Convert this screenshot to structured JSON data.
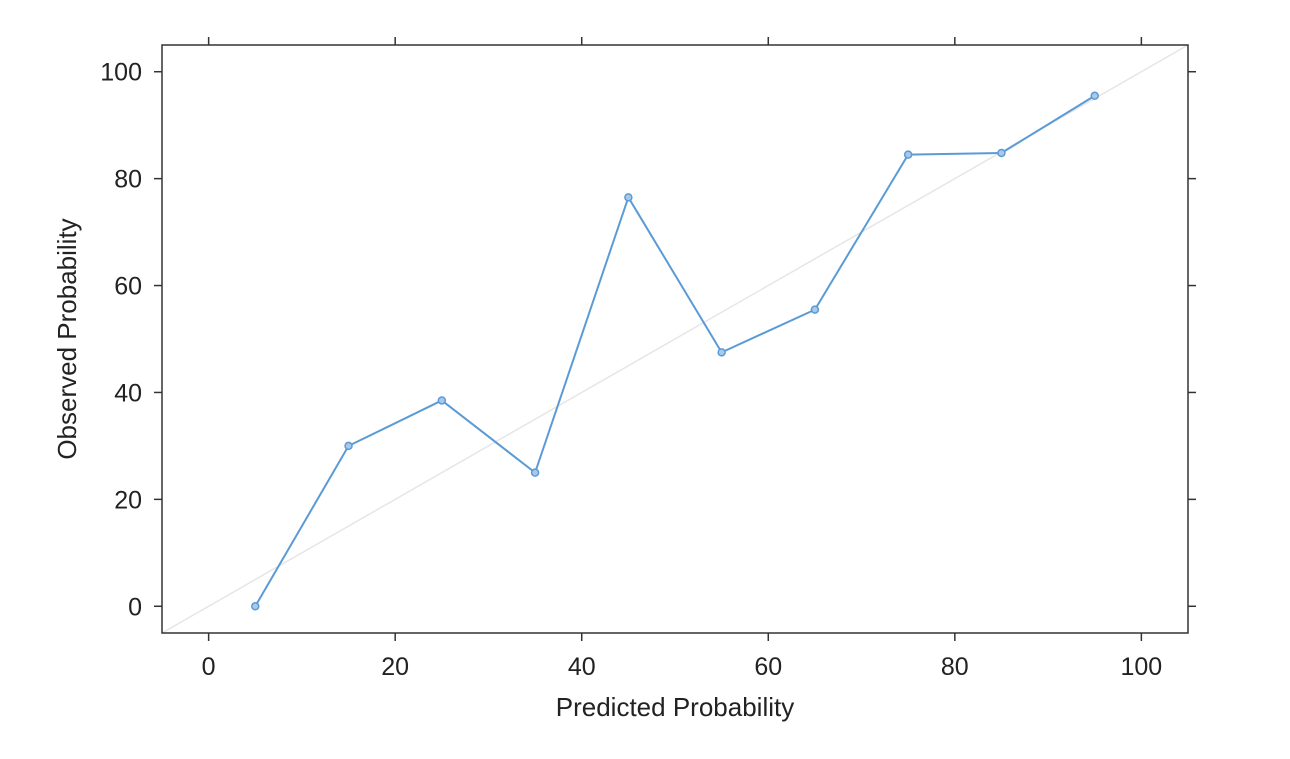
{
  "chart_data": {
    "type": "line",
    "xlabel": "Predicted Probability",
    "ylabel": "Observed Probability",
    "xlim": [
      -5,
      105
    ],
    "ylim": [
      -5,
      105
    ],
    "x_ticks": [
      0,
      20,
      40,
      60,
      80,
      100
    ],
    "y_ticks": [
      0,
      20,
      40,
      60,
      80,
      100
    ],
    "series": [
      {
        "x": [
          5,
          15,
          25,
          35,
          45,
          55,
          65,
          75,
          85,
          95
        ],
        "y": [
          0,
          30,
          38.5,
          25,
          76.5,
          47.5,
          55.5,
          84.5,
          84.8,
          95.5
        ],
        "color": "#5b9bd5"
      }
    ],
    "reference_line": {
      "x": [
        -5,
        105
      ],
      "y": [
        -5,
        105
      ],
      "color": "#e6e6e6"
    },
    "grid": false
  }
}
